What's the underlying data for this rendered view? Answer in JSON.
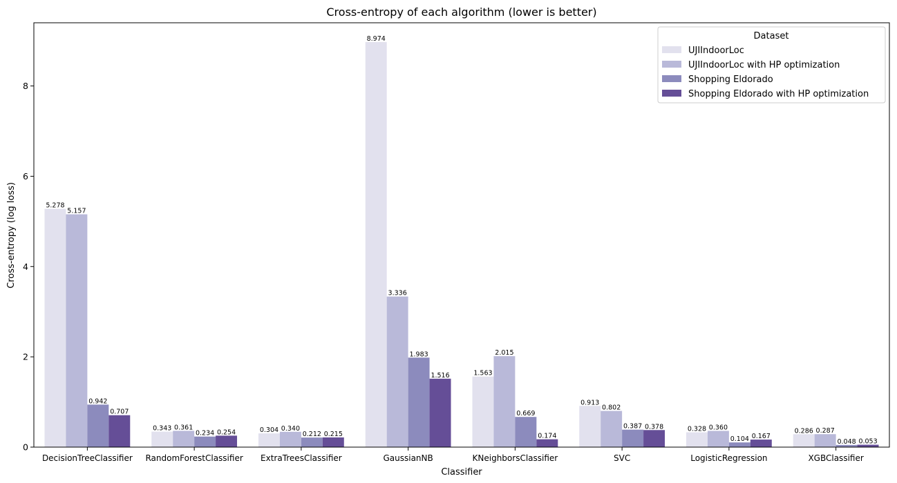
{
  "chart_data": {
    "type": "bar",
    "title": "Cross-entropy of each algorithm (lower is better)",
    "xlabel": "Classifier",
    "ylabel": "Cross-entropy (log loss)",
    "ylim": [
      0,
      9.4
    ],
    "yticks": [
      0,
      2,
      4,
      6,
      8
    ],
    "grid": false,
    "legend": {
      "title": "Dataset",
      "placement": "top-right"
    },
    "categories": [
      "DecisionTreeClassifier",
      "RandomForestClassifier",
      "ExtraTreesClassifier",
      "GaussianNB",
      "KNeighborsClassifier",
      "SVC",
      "LogisticRegression",
      "XGBClassifier"
    ],
    "series": [
      {
        "name": "UJIIndoorLoc",
        "color": "#e2e1ee",
        "values": [
          5.278,
          0.343,
          0.304,
          8.974,
          1.563,
          0.913,
          0.328,
          0.286
        ],
        "labels": [
          "5.278",
          "0.343",
          "0.304",
          "8.974",
          "1.563",
          "0.913",
          "0.328",
          "0.286"
        ]
      },
      {
        "name": "UJIIndoorLoc with HP optimization",
        "color": "#b9b9d9",
        "values": [
          5.157,
          0.361,
          0.34,
          3.336,
          2.015,
          0.802,
          0.36,
          0.287
        ],
        "labels": [
          "5.157",
          "0.361",
          "0.340",
          "3.336",
          "2.015",
          "0.802",
          "0.360",
          "0.287"
        ]
      },
      {
        "name": "Shopping Eldorado",
        "color": "#8c8bbd",
        "values": [
          0.942,
          0.234,
          0.212,
          1.983,
          0.669,
          0.387,
          0.104,
          0.048
        ],
        "labels": [
          "0.942",
          "0.234",
          "0.212",
          "1.983",
          "0.669",
          "0.387",
          "0.104",
          "0.048"
        ]
      },
      {
        "name": "Shopping Eldorado with HP optimization",
        "color": "#654e97",
        "values": [
          0.707,
          0.254,
          0.215,
          1.516,
          0.174,
          0.378,
          0.167,
          0.053
        ],
        "labels": [
          "0.707",
          "0.254",
          "0.215",
          "1.516",
          "0.174",
          "0.378",
          "0.167",
          "0.053"
        ]
      }
    ]
  }
}
